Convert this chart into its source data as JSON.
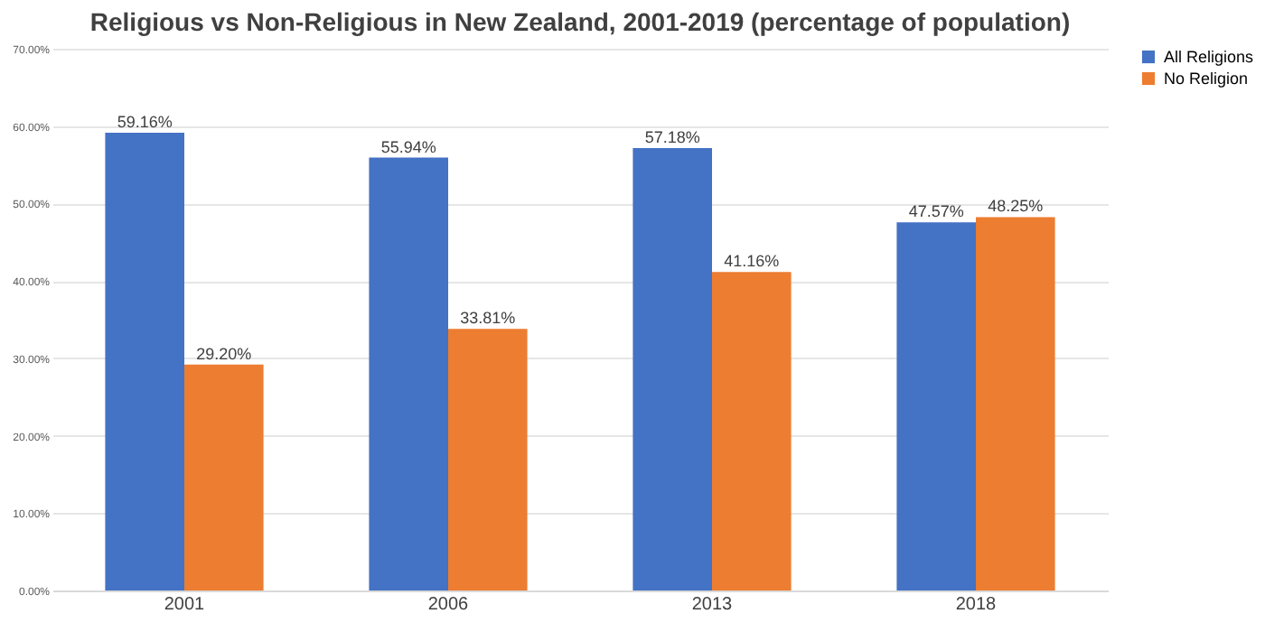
{
  "chart_data": {
    "type": "bar",
    "title": "Religious vs Non-Religious in New Zealand, 2001-2019 (percentage of population)",
    "categories": [
      "2001",
      "2006",
      "2013",
      "2018"
    ],
    "series": [
      {
        "name": "All Religions",
        "color": "#4472c4",
        "values": [
          59.16,
          55.94,
          57.18,
          47.57
        ],
        "value_labels": [
          "59.16%",
          "55.94%",
          "57.18%",
          "47.57%"
        ]
      },
      {
        "name": "No Religion",
        "color": "#ed7d31",
        "values": [
          29.2,
          33.81,
          41.16,
          48.25
        ],
        "value_labels": [
          "29.20%",
          "33.81%",
          "41.16%",
          "48.25%"
        ]
      }
    ],
    "ylim": [
      0,
      70
    ],
    "yticks": [
      {
        "value": 0,
        "label": "0.00%"
      },
      {
        "value": 10,
        "label": "10.00%"
      },
      {
        "value": 20,
        "label": "20.00%"
      },
      {
        "value": 30,
        "label": "30.00%"
      },
      {
        "value": 40,
        "label": "40.00%"
      },
      {
        "value": 50,
        "label": "50.00%"
      },
      {
        "value": 60,
        "label": "60.00%"
      },
      {
        "value": 70,
        "label": "70.00%"
      }
    ],
    "grid": "y",
    "legend": "right"
  }
}
